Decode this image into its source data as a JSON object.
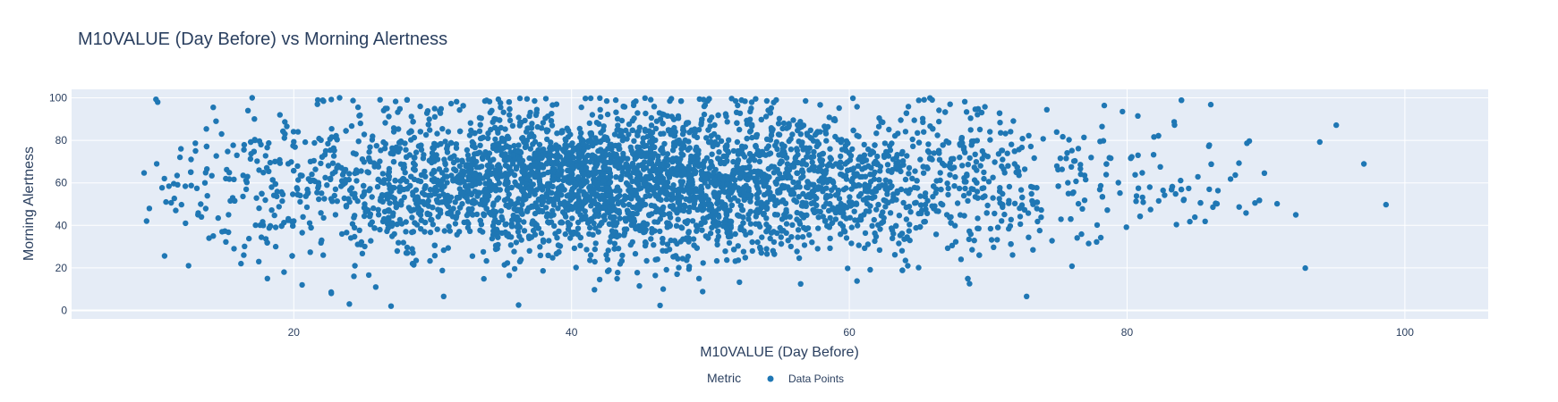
{
  "chart_data": {
    "type": "scatter",
    "title": "M10VALUE (Day Before) vs Morning Alertness",
    "xlabel": "M10VALUE (Day Before)",
    "ylabel": "Morning Alertness",
    "xlim": [
      4,
      106
    ],
    "ylim": [
      -4,
      104
    ],
    "xticks": [
      20,
      40,
      60,
      80,
      100
    ],
    "yticks": [
      0,
      20,
      40,
      60,
      80,
      100
    ],
    "grid": true,
    "legend": {
      "title": "Metric",
      "placement": "bottom-center",
      "entries": [
        "Data Points"
      ]
    },
    "plot_background": "#e5ecf6",
    "marker_color": "#1f77b4",
    "series": [
      {
        "name": "Data Points",
        "color": "#1f77b4",
        "points": [
          [
            9.4,
            42
          ],
          [
            9.6,
            48
          ],
          [
            10.2,
            98
          ],
          [
            10.8,
            51
          ],
          [
            11.5,
            47
          ],
          [
            11.8,
            72
          ],
          [
            12.2,
            41
          ],
          [
            12.6,
            71
          ],
          [
            13.1,
            45
          ],
          [
            13.3,
            50
          ],
          [
            13.6,
            60
          ],
          [
            13.9,
            34
          ],
          [
            14.2,
            35
          ],
          [
            14.4,
            89
          ],
          [
            14.8,
            83
          ],
          [
            15.1,
            62
          ],
          [
            15.3,
            45
          ],
          [
            15.6,
            53
          ],
          [
            15.9,
            73
          ],
          [
            16.2,
            22
          ],
          [
            16.4,
            26
          ],
          [
            16.7,
            94
          ],
          [
            17.0,
            100
          ],
          [
            17.2,
            80
          ],
          [
            17.5,
            66
          ],
          [
            17.8,
            40
          ],
          [
            18.1,
            15
          ],
          [
            18.4,
            58
          ],
          [
            18.7,
            30
          ],
          [
            19.0,
            92
          ],
          [
            19.3,
            18
          ],
          [
            19.6,
            69
          ],
          [
            20.0,
            42
          ],
          [
            20.3,
            84
          ],
          [
            20.6,
            12
          ],
          [
            21.0,
            55
          ],
          [
            21.3,
            64
          ],
          [
            21.7,
            97
          ],
          [
            22.0,
            33
          ],
          [
            22.3,
            75
          ],
          [
            22.7,
            8
          ],
          [
            23.0,
            45
          ],
          [
            23.3,
            100
          ],
          [
            23.7,
            60
          ],
          [
            24.0,
            3
          ],
          [
            24.4,
            21
          ],
          [
            24.8,
            88
          ],
          [
            25.1,
            50
          ],
          [
            25.5,
            70
          ],
          [
            25.9,
            11
          ],
          [
            26.2,
            38
          ],
          [
            26.6,
            95
          ],
          [
            27.0,
            2
          ],
          [
            27.3,
            61
          ],
          [
            27.7,
            79
          ],
          [
            28.1,
            27
          ]
        ],
        "density": {
          "description": "dense elliptical cloud of several thousand points",
          "center": [
            40,
            60
          ],
          "x_spread": 13,
          "y_spread": 17,
          "count": 4200,
          "x_range": [
            9,
            100
          ],
          "y_range": [
            0,
            100
          ]
        }
      }
    ]
  }
}
